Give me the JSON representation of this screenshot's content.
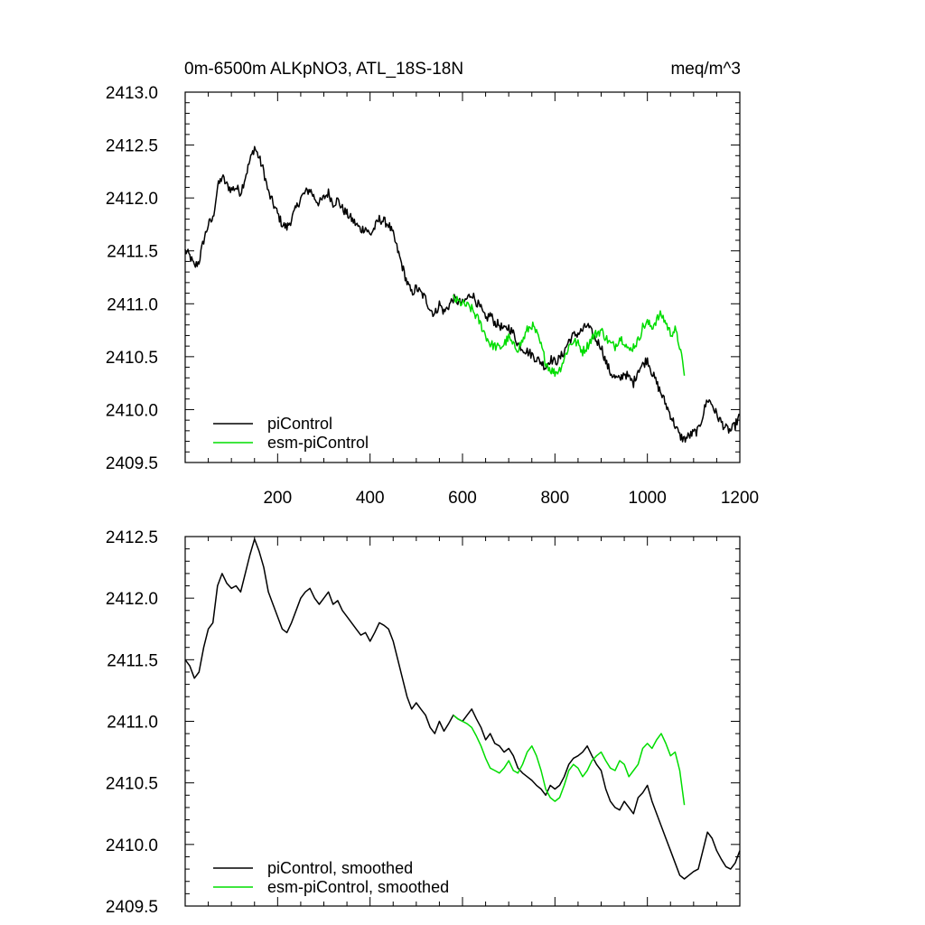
{
  "chart_data": [
    {
      "type": "line",
      "title": "0m-6500m ALKpNO3, ATL_18S-18N",
      "units": "meq/m^3",
      "xlim": [
        0,
        1200
      ],
      "ylim": [
        2409.5,
        2413.0
      ],
      "xticks": [
        200,
        400,
        600,
        800,
        1000,
        1200
      ],
      "xtick_labels": [
        "200",
        "400",
        "600",
        "800",
        "1000",
        "1200"
      ],
      "yticks": [
        2409.5,
        2410.0,
        2410.5,
        2411.0,
        2411.5,
        2412.0,
        2412.5,
        2413.0
      ],
      "ytick_labels": [
        "2409.5",
        "2410.0",
        "2410.5",
        "2411.0",
        "2411.5",
        "2412.0",
        "2412.5",
        "2413.0"
      ],
      "legend_position": "bottom-left",
      "series": [
        {
          "name": "piControl",
          "color": "#000000",
          "noisy": true,
          "x": [
            0,
            10,
            20,
            30,
            40,
            50,
            60,
            70,
            80,
            90,
            100,
            110,
            120,
            130,
            140,
            150,
            160,
            170,
            180,
            190,
            200,
            210,
            220,
            230,
            240,
            250,
            260,
            270,
            280,
            290,
            300,
            310,
            320,
            330,
            340,
            350,
            360,
            370,
            380,
            390,
            400,
            410,
            420,
            430,
            440,
            450,
            460,
            470,
            480,
            490,
            500,
            510,
            520,
            530,
            540,
            550,
            560,
            570,
            580,
            590,
            600,
            610,
            620,
            630,
            640,
            650,
            660,
            670,
            680,
            690,
            700,
            710,
            720,
            730,
            740,
            750,
            760,
            770,
            780,
            790,
            800,
            810,
            820,
            830,
            840,
            850,
            860,
            870,
            880,
            890,
            900,
            910,
            920,
            930,
            940,
            950,
            960,
            970,
            980,
            990,
            1000,
            1010,
            1020,
            1030,
            1040,
            1050,
            1060,
            1070,
            1080,
            1090,
            1100,
            1110,
            1120,
            1130,
            1140,
            1150,
            1160,
            1170,
            1180,
            1190,
            1200
          ],
          "values": [
            2411.5,
            2411.45,
            2411.35,
            2411.4,
            2411.6,
            2411.75,
            2411.8,
            2412.1,
            2412.2,
            2412.12,
            2412.08,
            2412.1,
            2412.05,
            2412.2,
            2412.35,
            2412.48,
            2412.38,
            2412.25,
            2412.05,
            2411.95,
            2411.85,
            2411.75,
            2411.72,
            2411.8,
            2411.9,
            2412.0,
            2412.05,
            2412.08,
            2412.0,
            2411.95,
            2412.0,
            2412.05,
            2411.95,
            2411.98,
            2411.9,
            2411.85,
            2411.8,
            2411.75,
            2411.7,
            2411.72,
            2411.65,
            2411.72,
            2411.8,
            2411.78,
            2411.75,
            2411.65,
            2411.5,
            2411.35,
            2411.2,
            2411.1,
            2411.15,
            2411.1,
            2411.05,
            2410.95,
            2410.9,
            2411.0,
            2410.92,
            2410.98,
            2411.05,
            2411.02,
            2411.0,
            2411.05,
            2411.1,
            2411.02,
            2410.95,
            2410.85,
            2410.9,
            2410.82,
            2410.8,
            2410.75,
            2410.78,
            2410.72,
            2410.62,
            2410.58,
            2410.55,
            2410.52,
            2410.48,
            2410.45,
            2410.4,
            2410.48,
            2410.45,
            2410.48,
            2410.55,
            2410.65,
            2410.7,
            2410.72,
            2410.75,
            2410.8,
            2410.72,
            2410.65,
            2410.6,
            2410.45,
            2410.35,
            2410.3,
            2410.28,
            2410.35,
            2410.3,
            2410.25,
            2410.38,
            2410.42,
            2410.48,
            2410.35,
            2410.25,
            2410.15,
            2410.05,
            2409.95,
            2409.85,
            2409.75,
            2409.72,
            2409.75,
            2409.78,
            2409.8,
            2409.95,
            2410.1,
            2410.05,
            2409.95,
            2409.88,
            2409.82,
            2409.8,
            2409.85,
            2409.95
          ]
        },
        {
          "name": "esm-piControl",
          "color": "#00dd00",
          "noisy": true,
          "x": [
            580,
            590,
            600,
            610,
            620,
            630,
            640,
            650,
            660,
            670,
            680,
            690,
            700,
            710,
            720,
            730,
            740,
            750,
            760,
            770,
            780,
            790,
            800,
            810,
            820,
            830,
            840,
            850,
            860,
            870,
            880,
            890,
            900,
            910,
            920,
            930,
            940,
            950,
            960,
            970,
            980,
            990,
            1000,
            1010,
            1020,
            1030,
            1040,
            1050,
            1060,
            1070,
            1080
          ],
          "values": [
            2411.05,
            2411.02,
            2411.0,
            2410.98,
            2410.95,
            2410.88,
            2410.8,
            2410.7,
            2410.62,
            2410.6,
            2410.58,
            2410.62,
            2410.68,
            2410.6,
            2410.58,
            2410.65,
            2410.75,
            2410.8,
            2410.72,
            2410.6,
            2410.45,
            2410.38,
            2410.35,
            2410.38,
            2410.48,
            2410.6,
            2410.65,
            2410.62,
            2410.55,
            2410.6,
            2410.68,
            2410.72,
            2410.75,
            2410.68,
            2410.62,
            2410.6,
            2410.68,
            2410.65,
            2410.55,
            2410.6,
            2410.65,
            2410.78,
            2410.82,
            2410.78,
            2410.85,
            2410.9,
            2410.82,
            2410.72,
            2410.75,
            2410.6,
            2410.32
          ]
        }
      ]
    },
    {
      "type": "line",
      "xlim": [
        0,
        1200
      ],
      "ylim": [
        2409.5,
        2412.5
      ],
      "xticks": [
        200,
        400,
        600,
        800,
        1000,
        1200
      ],
      "yticks": [
        2409.5,
        2410.0,
        2410.5,
        2411.0,
        2411.5,
        2412.0,
        2412.5
      ],
      "ytick_labels": [
        "2409.5",
        "2410.0",
        "2410.5",
        "2411.0",
        "2411.5",
        "2412.0",
        "2412.5"
      ],
      "legend_position": "bottom-left",
      "series": [
        {
          "name": "piControl, smoothed",
          "color": "#000000",
          "noisy": false,
          "x": [
            0,
            10,
            20,
            30,
            40,
            50,
            60,
            70,
            80,
            90,
            100,
            110,
            120,
            130,
            140,
            150,
            160,
            170,
            180,
            190,
            200,
            210,
            220,
            230,
            240,
            250,
            260,
            270,
            280,
            290,
            300,
            310,
            320,
            330,
            340,
            350,
            360,
            370,
            380,
            390,
            400,
            410,
            420,
            430,
            440,
            450,
            460,
            470,
            480,
            490,
            500,
            510,
            520,
            530,
            540,
            550,
            560,
            570,
            580,
            590,
            600,
            610,
            620,
            630,
            640,
            650,
            660,
            670,
            680,
            690,
            700,
            710,
            720,
            730,
            740,
            750,
            760,
            770,
            780,
            790,
            800,
            810,
            820,
            830,
            840,
            850,
            860,
            870,
            880,
            890,
            900,
            910,
            920,
            930,
            940,
            950,
            960,
            970,
            980,
            990,
            1000,
            1010,
            1020,
            1030,
            1040,
            1050,
            1060,
            1070,
            1080,
            1090,
            1100,
            1110,
            1120,
            1130,
            1140,
            1150,
            1160,
            1170,
            1180,
            1190,
            1200
          ],
          "values": [
            2411.5,
            2411.45,
            2411.35,
            2411.4,
            2411.6,
            2411.75,
            2411.8,
            2412.1,
            2412.2,
            2412.12,
            2412.08,
            2412.1,
            2412.05,
            2412.2,
            2412.35,
            2412.48,
            2412.38,
            2412.25,
            2412.05,
            2411.95,
            2411.85,
            2411.75,
            2411.72,
            2411.8,
            2411.9,
            2412.0,
            2412.05,
            2412.08,
            2412.0,
            2411.95,
            2412.0,
            2412.05,
            2411.95,
            2411.98,
            2411.9,
            2411.85,
            2411.8,
            2411.75,
            2411.7,
            2411.72,
            2411.65,
            2411.72,
            2411.8,
            2411.78,
            2411.75,
            2411.65,
            2411.5,
            2411.35,
            2411.2,
            2411.1,
            2411.15,
            2411.1,
            2411.05,
            2410.95,
            2410.9,
            2411.0,
            2410.92,
            2410.98,
            2411.05,
            2411.02,
            2411.0,
            2411.05,
            2411.1,
            2411.02,
            2410.95,
            2410.85,
            2410.9,
            2410.82,
            2410.8,
            2410.75,
            2410.78,
            2410.72,
            2410.62,
            2410.58,
            2410.55,
            2410.52,
            2410.48,
            2410.45,
            2410.4,
            2410.48,
            2410.45,
            2410.48,
            2410.55,
            2410.65,
            2410.7,
            2410.72,
            2410.75,
            2410.8,
            2410.72,
            2410.65,
            2410.6,
            2410.45,
            2410.35,
            2410.3,
            2410.28,
            2410.35,
            2410.3,
            2410.25,
            2410.38,
            2410.42,
            2410.48,
            2410.35,
            2410.25,
            2410.15,
            2410.05,
            2409.95,
            2409.85,
            2409.75,
            2409.72,
            2409.75,
            2409.78,
            2409.8,
            2409.95,
            2410.1,
            2410.05,
            2409.95,
            2409.88,
            2409.82,
            2409.8,
            2409.85,
            2409.95
          ]
        },
        {
          "name": "esm-piControl, smoothed",
          "color": "#00dd00",
          "noisy": false,
          "x": [
            580,
            590,
            600,
            610,
            620,
            630,
            640,
            650,
            660,
            670,
            680,
            690,
            700,
            710,
            720,
            730,
            740,
            750,
            760,
            770,
            780,
            790,
            800,
            810,
            820,
            830,
            840,
            850,
            860,
            870,
            880,
            890,
            900,
            910,
            920,
            930,
            940,
            950,
            960,
            970,
            980,
            990,
            1000,
            1010,
            1020,
            1030,
            1040,
            1050,
            1060,
            1070,
            1080
          ],
          "values": [
            2411.05,
            2411.02,
            2411.0,
            2410.98,
            2410.95,
            2410.88,
            2410.8,
            2410.7,
            2410.62,
            2410.6,
            2410.58,
            2410.62,
            2410.68,
            2410.6,
            2410.58,
            2410.65,
            2410.75,
            2410.8,
            2410.72,
            2410.6,
            2410.45,
            2410.38,
            2410.35,
            2410.38,
            2410.48,
            2410.6,
            2410.65,
            2410.62,
            2410.55,
            2410.6,
            2410.68,
            2410.72,
            2410.75,
            2410.68,
            2410.62,
            2410.6,
            2410.68,
            2410.65,
            2410.55,
            2410.6,
            2410.65,
            2410.78,
            2410.82,
            2410.78,
            2410.85,
            2410.9,
            2410.82,
            2410.72,
            2410.75,
            2410.6,
            2410.32
          ]
        }
      ]
    }
  ]
}
